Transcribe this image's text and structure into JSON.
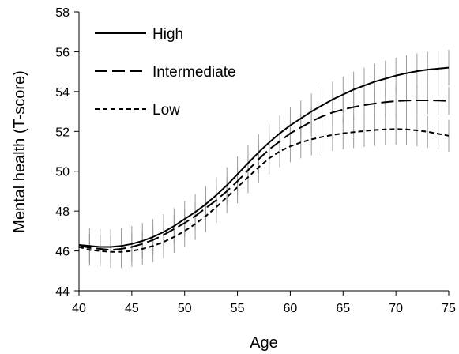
{
  "chart_data": {
    "type": "line",
    "xlabel": "Age",
    "ylabel": "Mental health (T-score)",
    "xlim": [
      40,
      75
    ],
    "ylim": [
      44,
      58
    ],
    "xticks": [
      40,
      45,
      50,
      55,
      60,
      65,
      70,
      75
    ],
    "yticks": [
      44,
      46,
      48,
      50,
      52,
      54,
      56,
      58
    ],
    "legend_position": "top-left",
    "grid": false,
    "error_bars": true,
    "series": [
      {
        "name": "High",
        "dash": "solid",
        "x": [
          40,
          41,
          42,
          43,
          44,
          45,
          46,
          47,
          48,
          49,
          50,
          51,
          52,
          53,
          54,
          55,
          56,
          57,
          58,
          59,
          60,
          61,
          62,
          63,
          64,
          65,
          66,
          67,
          68,
          69,
          70,
          71,
          72,
          73,
          74,
          75
        ],
        "y": [
          46.3,
          46.25,
          46.2,
          46.2,
          46.25,
          46.35,
          46.5,
          46.7,
          46.95,
          47.25,
          47.6,
          47.95,
          48.35,
          48.8,
          49.3,
          49.85,
          50.4,
          50.95,
          51.45,
          51.9,
          52.3,
          52.65,
          53.0,
          53.3,
          53.6,
          53.85,
          54.1,
          54.3,
          54.5,
          54.65,
          54.8,
          54.92,
          55.02,
          55.1,
          55.15,
          55.2
        ],
        "err": 0.9
      },
      {
        "name": "Intermediate",
        "dash": "long-dash",
        "x": [
          40,
          41,
          42,
          43,
          44,
          45,
          46,
          47,
          48,
          49,
          50,
          51,
          52,
          53,
          54,
          55,
          56,
          57,
          58,
          59,
          60,
          61,
          62,
          63,
          64,
          65,
          66,
          67,
          68,
          69,
          70,
          71,
          72,
          73,
          74,
          75
        ],
        "y": [
          46.3,
          46.15,
          46.1,
          46.05,
          46.1,
          46.2,
          46.35,
          46.55,
          46.8,
          47.1,
          47.4,
          47.75,
          48.15,
          48.55,
          49.0,
          49.5,
          50.05,
          50.6,
          51.1,
          51.5,
          51.9,
          52.2,
          52.5,
          52.75,
          52.95,
          53.1,
          53.22,
          53.32,
          53.4,
          53.47,
          53.52,
          53.55,
          53.56,
          53.56,
          53.55,
          53.53
        ],
        "err": 0.7
      },
      {
        "name": "Low",
        "dash": "short-dash",
        "x": [
          40,
          41,
          42,
          43,
          44,
          45,
          46,
          47,
          48,
          49,
          50,
          51,
          52,
          53,
          54,
          55,
          56,
          57,
          58,
          59,
          60,
          61,
          62,
          63,
          64,
          65,
          66,
          67,
          68,
          69,
          70,
          71,
          72,
          73,
          74,
          75
        ],
        "y": [
          46.2,
          46.05,
          46.0,
          45.95,
          45.95,
          46.0,
          46.1,
          46.25,
          46.45,
          46.7,
          47.0,
          47.35,
          47.75,
          48.2,
          48.7,
          49.2,
          49.7,
          50.2,
          50.65,
          51.0,
          51.25,
          51.45,
          51.6,
          51.72,
          51.82,
          51.9,
          51.96,
          52.02,
          52.07,
          52.1,
          52.12,
          52.1,
          52.05,
          51.98,
          51.88,
          51.78
        ],
        "err": 0.8
      }
    ]
  }
}
